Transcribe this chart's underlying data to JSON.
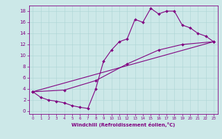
{
  "xlabel": "Windchill (Refroidissement éolien,°C)",
  "bg_color": "#cce8e8",
  "line_color": "#800080",
  "marker": "D",
  "markersize": 2.0,
  "linewidth": 0.8,
  "xlim": [
    -0.5,
    23.5
  ],
  "ylim": [
    -0.5,
    19.0
  ],
  "xticks": [
    0,
    1,
    2,
    3,
    4,
    5,
    6,
    7,
    8,
    9,
    10,
    11,
    12,
    13,
    14,
    15,
    16,
    17,
    18,
    19,
    20,
    21,
    22,
    23
  ],
  "yticks": [
    0,
    2,
    4,
    6,
    8,
    10,
    12,
    14,
    16,
    18
  ],
  "line1_x": [
    0,
    1,
    2,
    3,
    4,
    5,
    6,
    7,
    8,
    9,
    10,
    11,
    12,
    13,
    14,
    15,
    16,
    17,
    18,
    19,
    20,
    21,
    22,
    23
  ],
  "line1_y": [
    3.5,
    2.5,
    2.0,
    1.8,
    1.5,
    1.0,
    0.7,
    0.5,
    4.0,
    9.0,
    11.0,
    12.5,
    13.0,
    16.5,
    16.0,
    18.5,
    17.5,
    18.0,
    18.0,
    15.5,
    15.0,
    14.0,
    13.5,
    12.5
  ],
  "line2_x": [
    0,
    23
  ],
  "line2_y": [
    3.5,
    12.5
  ],
  "line3_x": [
    0,
    4,
    8,
    12,
    16,
    19,
    23
  ],
  "line3_y": [
    3.5,
    3.8,
    5.5,
    8.5,
    11.0,
    12.0,
    12.5
  ],
  "xlabel_fontsize": 5.0,
  "tick_fontsize_x": 4.0,
  "tick_fontsize_y": 5.0,
  "grid_color": "#aad4d4",
  "grid_linewidth": 0.4
}
